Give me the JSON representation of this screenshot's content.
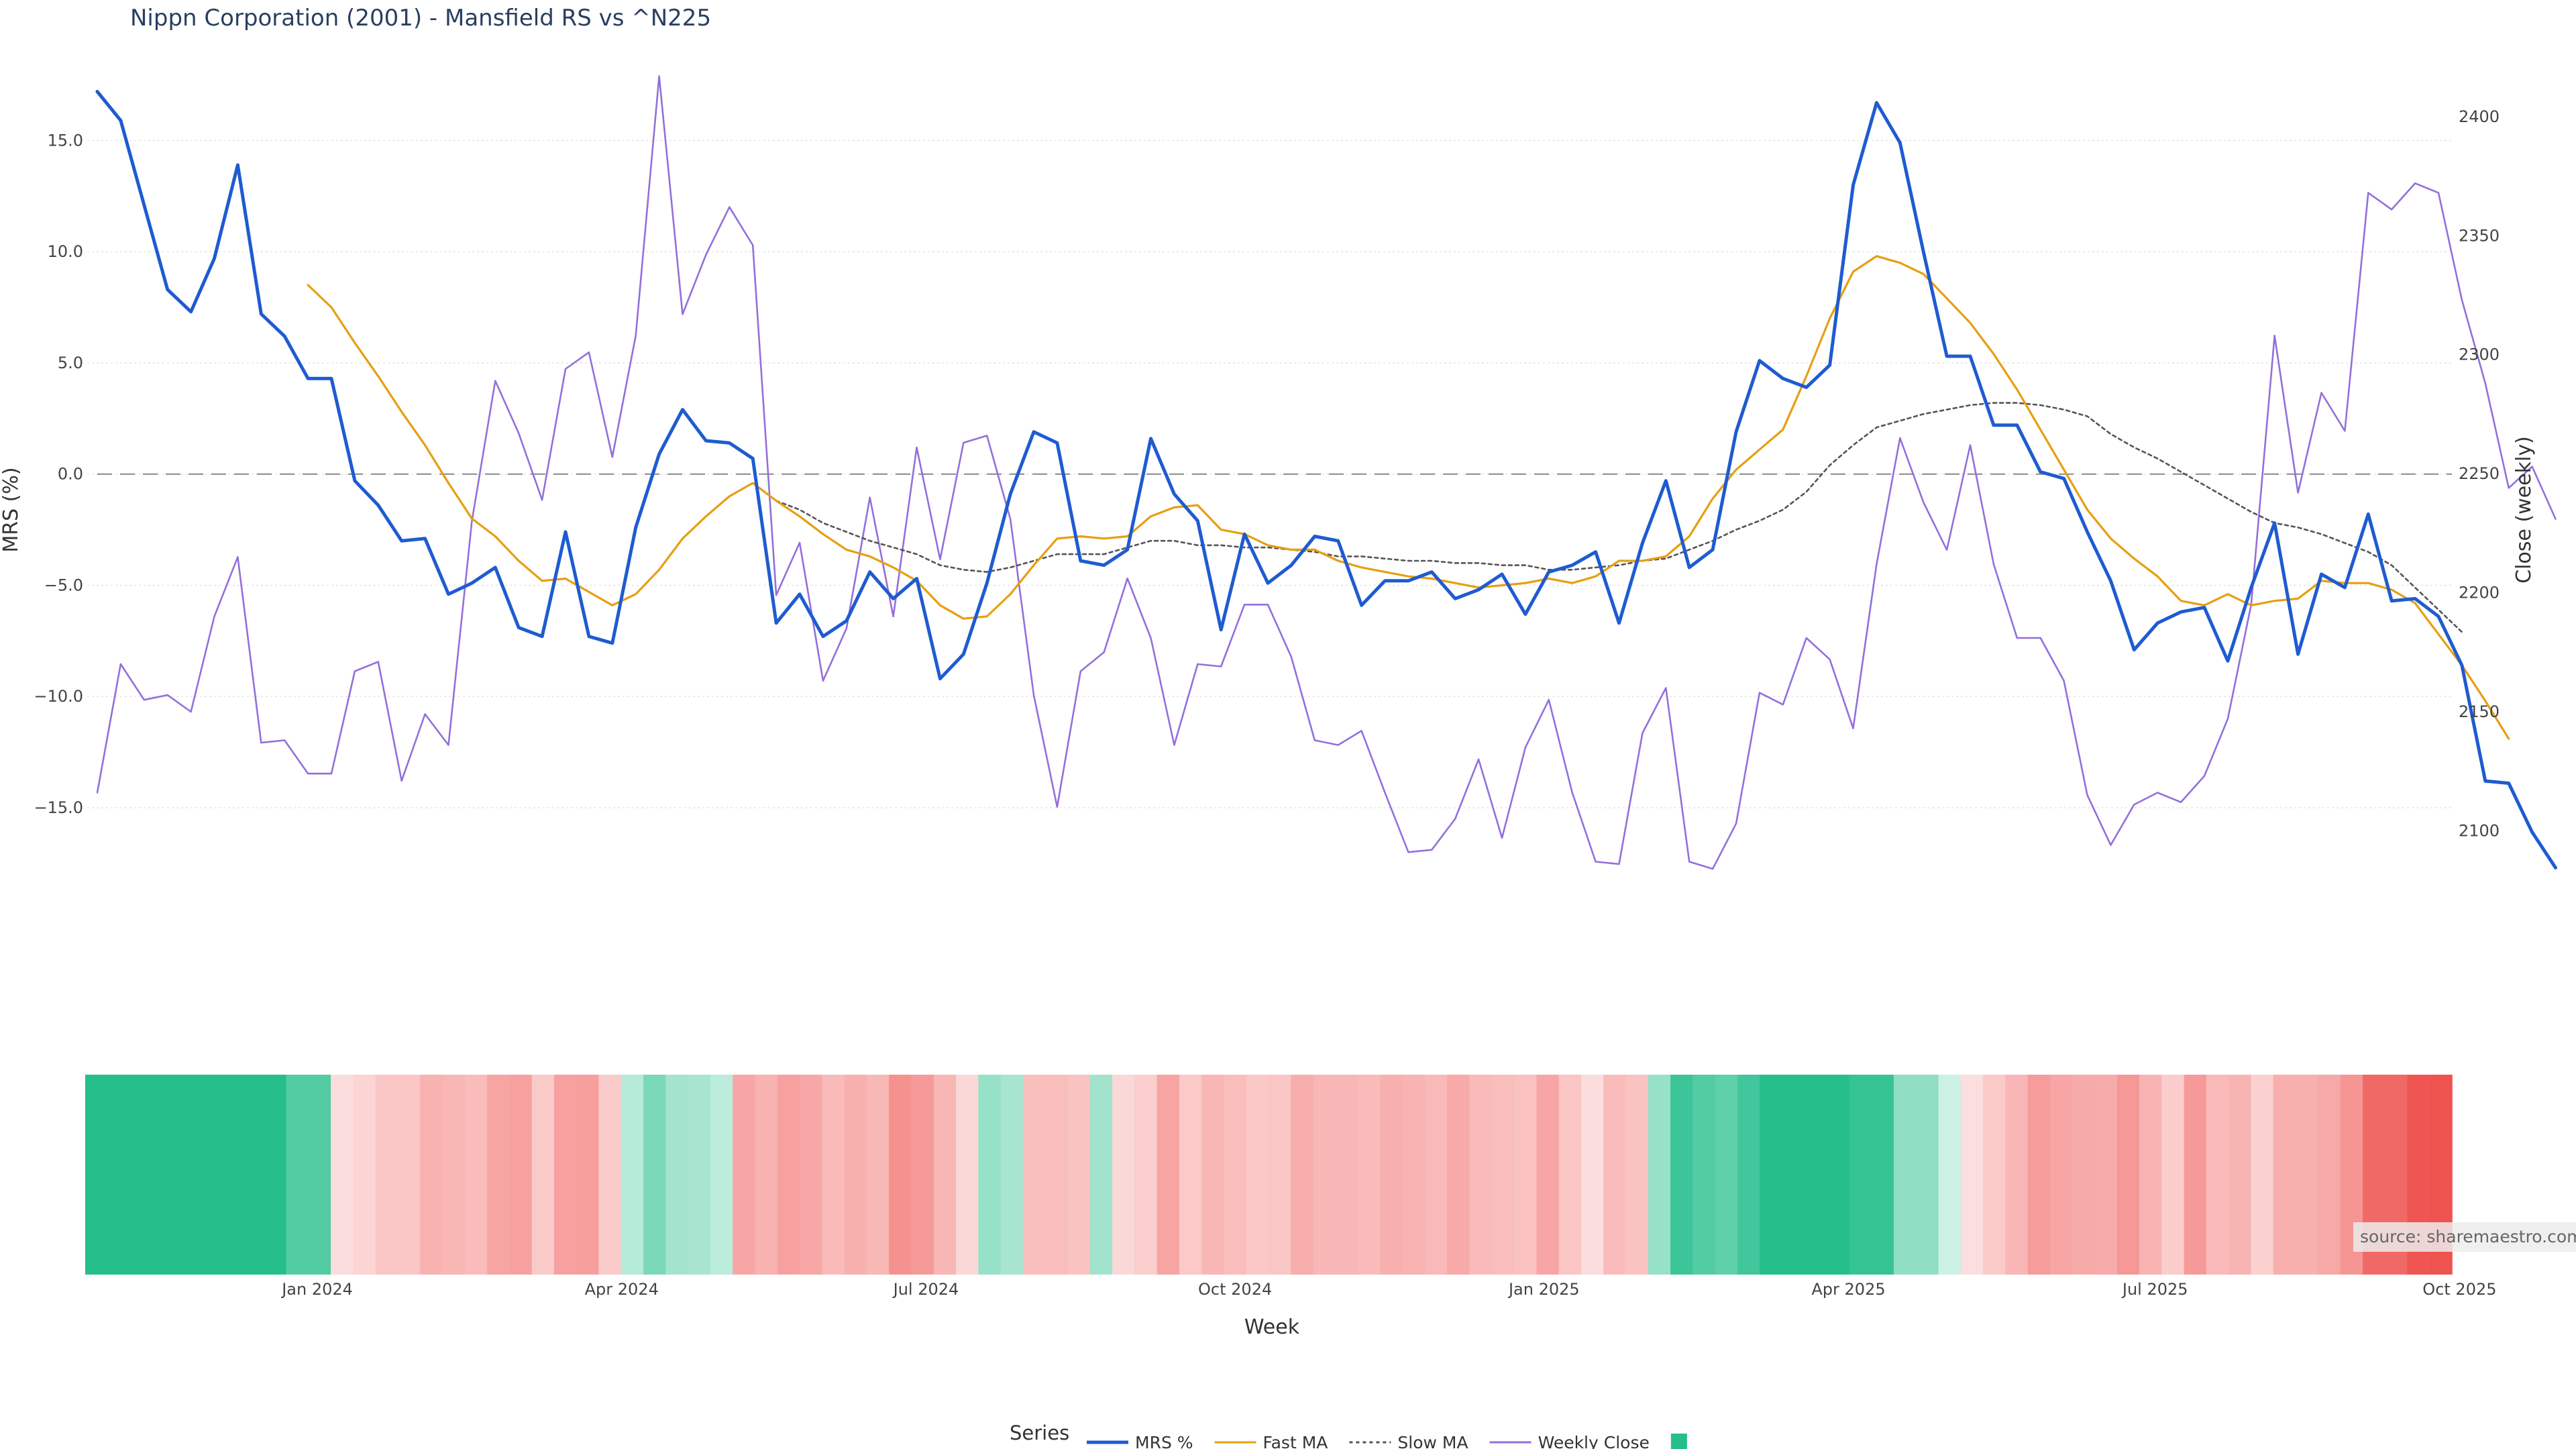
{
  "chart_data": {
    "type": "line",
    "title": "Nippn Corporation (2001) - Mansfield RS vs ^N225",
    "xlabel": "Week",
    "ylabel_left": "MRS (%)",
    "ylabel_right": "Close (weekly)",
    "left_ylim": [
      -18.5,
      18.0
    ],
    "right_ylim": [
      2077.0,
      2418.0
    ],
    "left_ticks": [
      "15.0",
      "10.0",
      "5.0",
      "0.0",
      "−5.0",
      "−10.0",
      "−15.0"
    ],
    "left_tick_values": [
      15,
      10,
      5,
      0,
      -5,
      -10,
      -15
    ],
    "right_ticks": [
      "2400",
      "2350",
      "2300",
      "2250",
      "2200",
      "2150",
      "2100"
    ],
    "right_tick_values": [
      2400,
      2350,
      2300,
      2250,
      2200,
      2150,
      2100
    ],
    "x_tick_labels": [
      "Jan 2024",
      "Apr 2024",
      "Jul 2024",
      "Oct 2024",
      "Jan 2025",
      "Apr 2025",
      "Jul 2025",
      "Oct 2025"
    ],
    "x_tick_week_index": [
      9.4,
      22.4,
      35.4,
      48.6,
      61.8,
      74.8,
      87.9,
      100.9
    ],
    "zero_line": 0,
    "series": [
      {
        "name": "MRS %",
        "color": "#1f5bd1",
        "axis": "left",
        "style": "solid",
        "values": [
          17.2,
          15.9,
          12.1,
          8.3,
          7.3,
          9.7,
          13.9,
          7.2,
          6.2,
          4.3,
          4.3,
          -0.3,
          -1.4,
          -3.0,
          -2.9,
          -5.4,
          -4.9,
          -4.2,
          -6.9,
          -7.3,
          -2.6,
          -7.3,
          -7.6,
          -2.4,
          0.9,
          2.9,
          1.5,
          1.4,
          0.7,
          -6.7,
          -5.4,
          -7.3,
          -6.6,
          -4.4,
          -5.6,
          -4.7,
          -9.2,
          -8.1,
          -4.9,
          -0.9,
          1.9,
          1.4,
          -3.9,
          -4.1,
          -3.4,
          1.6,
          -0.9,
          -2.1,
          -7.0,
          -2.7,
          -4.9,
          -4.1,
          -2.8,
          -3.0,
          -5.9,
          -4.8,
          -4.8,
          -4.4,
          -5.6,
          -5.2,
          -4.5,
          -6.3,
          -4.4,
          -4.1,
          -3.5,
          -6.7,
          -3.1,
          -0.3,
          -4.2,
          -3.4,
          1.9,
          5.1,
          4.3,
          3.9,
          4.9,
          13.0,
          16.7,
          14.9,
          10.0,
          5.3,
          5.3,
          2.2,
          2.2,
          0.1,
          -0.2,
          -2.6,
          -4.8,
          -7.9,
          -6.7,
          -6.2,
          -6.0,
          -8.4,
          -5.1,
          -2.2,
          -8.1,
          -4.5,
          -5.1,
          -1.8,
          -5.7,
          -5.6,
          -6.4,
          -8.6,
          -13.8,
          -13.9,
          -16.1,
          -17.7
        ]
      },
      {
        "name": "Fast MA",
        "color": "#e69f12",
        "axis": "left",
        "style": "solid",
        "start_index": 9,
        "values": [
          8.5,
          7.5,
          5.9,
          4.4,
          2.8,
          1.3,
          -0.4,
          -2.0,
          -2.8,
          -3.9,
          -4.8,
          -4.7,
          -5.3,
          -5.9,
          -5.4,
          -4.3,
          -2.9,
          -1.9,
          -1.0,
          -0.4,
          -1.2,
          -1.9,
          -2.7,
          -3.4,
          -3.7,
          -4.2,
          -4.8,
          -5.9,
          -6.5,
          -6.4,
          -5.4,
          -4.1,
          -2.9,
          -2.8,
          -2.9,
          -2.8,
          -1.9,
          -1.5,
          -1.4,
          -2.5,
          -2.7,
          -3.2,
          -3.4,
          -3.4,
          -3.9,
          -4.2,
          -4.4,
          -4.6,
          -4.7,
          -4.9,
          -5.1,
          -5.0,
          -4.9,
          -4.7,
          -4.9,
          -4.6,
          -3.9,
          -3.9,
          -3.7,
          -2.8,
          -1.1,
          0.2,
          1.1,
          2.0,
          4.4,
          7.0,
          9.1,
          9.8,
          9.5,
          9.0,
          7.9,
          6.8,
          5.4,
          3.8,
          2.0,
          0.2,
          -1.6,
          -2.9,
          -3.8,
          -4.6,
          -5.7,
          -5.9,
          -5.4,
          -5.9,
          -5.7,
          -5.6,
          -4.8,
          -4.9,
          -4.9,
          -5.2,
          -5.8,
          -7.2,
          -8.6,
          -10.2,
          -11.9
        ]
      },
      {
        "name": "Slow MA",
        "color": "#555555",
        "axis": "left",
        "style": "dotted",
        "start_index": 29,
        "values": [
          -1.2,
          -1.6,
          -2.2,
          -2.6,
          -3.0,
          -3.3,
          -3.6,
          -4.1,
          -4.3,
          -4.4,
          -4.2,
          -3.9,
          -3.6,
          -3.6,
          -3.6,
          -3.3,
          -3.0,
          -3.0,
          -3.2,
          -3.2,
          -3.3,
          -3.3,
          -3.4,
          -3.5,
          -3.7,
          -3.7,
          -3.8,
          -3.9,
          -3.9,
          -4.0,
          -4.0,
          -4.1,
          -4.1,
          -4.3,
          -4.3,
          -4.2,
          -4.1,
          -3.9,
          -3.8,
          -3.4,
          -3.0,
          -2.5,
          -2.1,
          -1.6,
          -0.8,
          0.4,
          1.3,
          2.1,
          2.4,
          2.7,
          2.9,
          3.1,
          3.2,
          3.2,
          3.1,
          2.9,
          2.6,
          1.8,
          1.2,
          0.7,
          0.1,
          -0.5,
          -1.1,
          -1.7,
          -2.2,
          -2.4,
          -2.7,
          -3.1,
          -3.5,
          -4.1,
          -5.1,
          -6.1,
          -7.1
        ]
      },
      {
        "name": "Weekly Close",
        "color": "#9370db",
        "axis": "right",
        "style": "solid",
        "values": [
          2116,
          2170,
          2155,
          2157,
          2150,
          2190,
          2215,
          2137,
          2138,
          2124,
          2124,
          2167,
          2171,
          2121,
          2149,
          2136,
          2230,
          2289,
          2267,
          2239,
          2294,
          2301,
          2257,
          2308,
          2417,
          2317,
          2342,
          2362,
          2346,
          2199,
          2221,
          2163,
          2185,
          2240,
          2190,
          2261,
          2214,
          2263,
          2266,
          2231,
          2157,
          2110,
          2167,
          2175,
          2206,
          2181,
          2136,
          2170,
          2169,
          2195,
          2195,
          2173,
          2138,
          2136,
          2142,
          2116,
          2091,
          2092,
          2105,
          2130,
          2097,
          2135,
          2155,
          2116,
          2087,
          2086,
          2141,
          2160,
          2087,
          2084,
          2103,
          2158,
          2153,
          2181,
          2172,
          2143,
          2212,
          2265,
          2238,
          2218,
          2262,
          2212,
          2181,
          2181,
          2163,
          2115,
          2094,
          2111,
          2116,
          2112,
          2123,
          2147,
          2195,
          2308,
          2242,
          2284,
          2268,
          2368,
          2361,
          2372,
          2368,
          2323,
          2288,
          2244,
          2253,
          2231
        ]
      }
    ],
    "heatmap": {
      "name": "MRS heat strip",
      "positive_color": "#26bf8c",
      "negative_color": "#ef5350"
    },
    "legend_title": "Series",
    "legend_position": "bottom-center"
  },
  "source_text": "source: sharemaestro.com"
}
